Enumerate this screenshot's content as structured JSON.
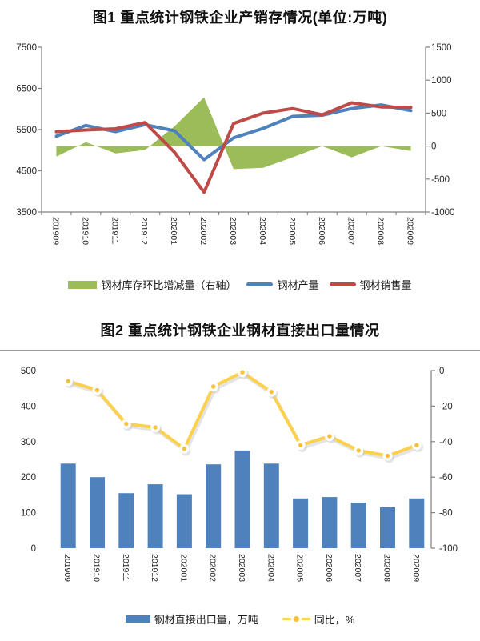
{
  "fig1": {
    "title": "图1 重点统计钢铁企业产销存情况(单位:万吨)"
  },
  "fig2": {
    "title": "图2 重点统计钢铁企业钢材直接出口量情况"
  },
  "chart_data": [
    {
      "type": "area+line combo",
      "title": "图1 重点统计钢铁企业产销存情况(单位:万吨)",
      "categories": [
        "201909",
        "201910",
        "201911",
        "201912",
        "202001",
        "202002",
        "202003",
        "202004",
        "202005",
        "202006",
        "202007",
        "202008",
        "202009"
      ],
      "left_axis": {
        "min": 3500,
        "max": 7500,
        "ticks": [
          "7500",
          "6500",
          "5500",
          "4500",
          "3500"
        ]
      },
      "right_axis": {
        "min": -1000,
        "max": 1500,
        "ticks": [
          "1500",
          "1000",
          "500",
          "0",
          "-500",
          "-1000"
        ]
      },
      "grid": "off",
      "legend_position": "bottom",
      "series": [
        {
          "name": "钢材库存环比增减量（右轴）",
          "type": "area",
          "axis": "right",
          "color": "#9CBB59",
          "values": [
            -160,
            60,
            -110,
            -60,
            300,
            740,
            -350,
            -330,
            -170,
            0,
            -170,
            0,
            -75
          ]
        },
        {
          "name": "钢材产量",
          "type": "line",
          "axis": "left",
          "color": "#4F81BD",
          "values": [
            5340,
            5600,
            5450,
            5620,
            5470,
            4770,
            5300,
            5530,
            5820,
            5850,
            6010,
            6100,
            5960
          ]
        },
        {
          "name": "钢材销售量",
          "type": "line",
          "axis": "left",
          "color": "#BE4B48",
          "values": [
            5450,
            5490,
            5520,
            5670,
            4950,
            3980,
            5650,
            5900,
            6010,
            5860,
            6150,
            6050,
            6040
          ]
        }
      ]
    },
    {
      "type": "bar+line combo",
      "title": "图2 重点统计钢铁企业钢材直接出口量情况",
      "categories": [
        "201909",
        "201910",
        "201911",
        "201912",
        "202001",
        "202002",
        "202003",
        "202004",
        "202005",
        "202006",
        "202007",
        "202008",
        "202009"
      ],
      "left_axis": {
        "min": 0,
        "max": 500,
        "ticks": [
          "500",
          "400",
          "300",
          "200",
          "100",
          "0"
        ]
      },
      "right_axis": {
        "min": -100,
        "max": 0,
        "ticks": [
          "0",
          "-20",
          "-40",
          "-60",
          "-80",
          "-100"
        ]
      },
      "grid": "off",
      "legend_position": "bottom",
      "series": [
        {
          "name": "钢材直接出口量，万吨",
          "type": "bar",
          "axis": "left",
          "color": "#4F81BD",
          "values": [
            238,
            200,
            155,
            180,
            152,
            236,
            275,
            238,
            140,
            144,
            128,
            115,
            140
          ]
        },
        {
          "name": "同比，%",
          "type": "line-marker",
          "axis": "right",
          "color": "#FBD14E",
          "marker_fill": "#ffffff",
          "marker_dot": "#F7C13A",
          "values": [
            -6,
            -11,
            -30,
            -32,
            -44,
            -9,
            -1,
            -12,
            -42,
            -37,
            -45,
            -48,
            -42
          ]
        }
      ]
    }
  ],
  "style": {
    "axis_color": "#7f7f7f",
    "label_color": "#262626"
  }
}
